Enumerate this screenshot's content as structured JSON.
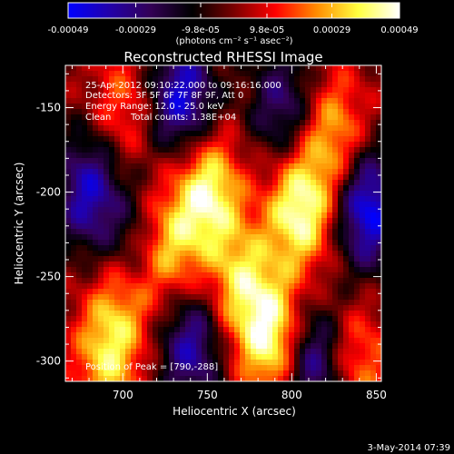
{
  "chart_data": {
    "type": "heatmap",
    "title": "Reconstructed RHESSI Image",
    "xlabel": "Heliocentric X (arcsec)",
    "ylabel": "Heliocentric Y (arcsec)",
    "xlim": [
      666,
      853
    ],
    "ylim": [
      -312,
      -125
    ],
    "x_ticks": [
      700,
      750,
      800,
      850
    ],
    "y_ticks": [
      -150,
      -200,
      -250,
      -300
    ],
    "colorbar": {
      "range": [
        -0.00049,
        0.00049
      ],
      "tick_values": [
        -0.00049,
        -0.00029,
        -9.8e-05,
        9.8e-05,
        0.00029,
        0.00049
      ],
      "tick_labels": [
        "-0.00049",
        "-0.00029",
        "-9.8e-05",
        "9.8e-05",
        "0.00029",
        "0.00049"
      ],
      "unit_label": "(photons cm⁻² s⁻¹ asec⁻²)",
      "colors": [
        "#0000ff",
        "#2200aa",
        "#330055",
        "#000000",
        "#7a0000",
        "#ff0000",
        "#ff8c00",
        "#ffff40",
        "#ffffff"
      ]
    },
    "annotations": [
      "25-Apr-2012 09:10:22.000 to 09:16:16.000",
      "Detectors: 3F 5F 6F 7F 8F 9F, Att 0",
      "Energy Range: 12.0 - 25.0 keV",
      "Clean",
      "Total counts: 1.38E+04"
    ],
    "peak_label": "Position of Peak = [790,-288]",
    "peak": [
      790,
      -288
    ],
    "bright_sources": [
      {
        "x": 750,
        "y": -200,
        "value": 0.00045
      },
      {
        "x": 805,
        "y": -210,
        "value": 0.00047
      },
      {
        "x": 790,
        "y": -288,
        "value": 0.00049
      },
      {
        "x": 770,
        "y": -255,
        "value": 0.00033
      },
      {
        "x": 725,
        "y": -235,
        "value": 0.0004
      },
      {
        "x": 700,
        "y": -265,
        "value": 0.00025
      },
      {
        "x": 700,
        "y": -150,
        "value": 0.0002
      },
      {
        "x": 825,
        "y": -165,
        "value": 0.0003
      },
      {
        "x": 840,
        "y": -300,
        "value": 0.00022
      },
      {
        "x": 690,
        "y": -300,
        "value": 0.0003
      }
    ],
    "negative_sources": [
      {
        "x": 735,
        "y": -145,
        "value": -0.00045
      },
      {
        "x": 680,
        "y": -200,
        "value": -0.0004
      },
      {
        "x": 845,
        "y": -210,
        "value": -0.00049
      },
      {
        "x": 740,
        "y": -290,
        "value": -0.00038
      },
      {
        "x": 810,
        "y": -300,
        "value": -0.00042
      },
      {
        "x": 795,
        "y": -150,
        "value": -0.0003
      },
      {
        "x": 710,
        "y": -235,
        "value": -0.00028
      }
    ]
  },
  "footer": {
    "timestamp": "3-May-2014 07:39"
  }
}
